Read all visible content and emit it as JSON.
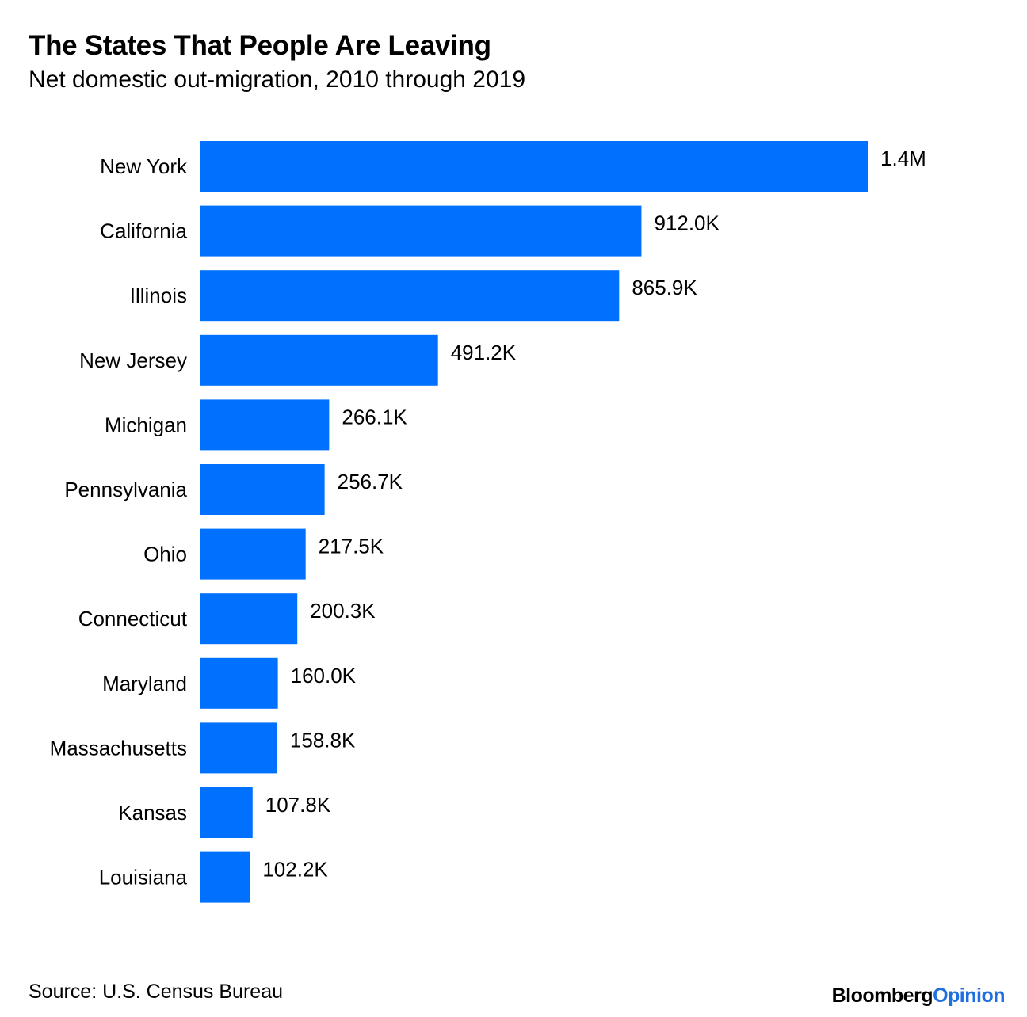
{
  "title": "The States That People Are Leaving",
  "subtitle": "Net domestic out-migration, 2010 through 2019",
  "source": "Source: U.S. Census Bureau",
  "brand": {
    "part1": "Bloomberg",
    "part2": "Opinion",
    "part2_color": "#1f6fe0"
  },
  "chart_data": {
    "type": "bar",
    "orientation": "horizontal",
    "bar_color": "#0070ff",
    "categories": [
      "New York",
      "California",
      "Illinois",
      "New Jersey",
      "Michigan",
      "Pennsylvania",
      "Ohio",
      "Connecticut",
      "Maryland",
      "Massachusetts",
      "Kansas",
      "Louisiana"
    ],
    "values": [
      1380000,
      912000,
      865900,
      491200,
      266100,
      256700,
      217500,
      200300,
      160000,
      158800,
      107800,
      102200
    ],
    "labels": [
      "1.4M",
      "912.0K",
      "865.9K",
      "491.2K",
      "266.1K",
      "256.7K",
      "217.5K",
      "200.3K",
      "160.0K",
      "158.8K",
      "107.8K",
      "102.2K"
    ],
    "xlim": [
      0,
      1380000
    ],
    "grid": false,
    "legend": "none"
  }
}
